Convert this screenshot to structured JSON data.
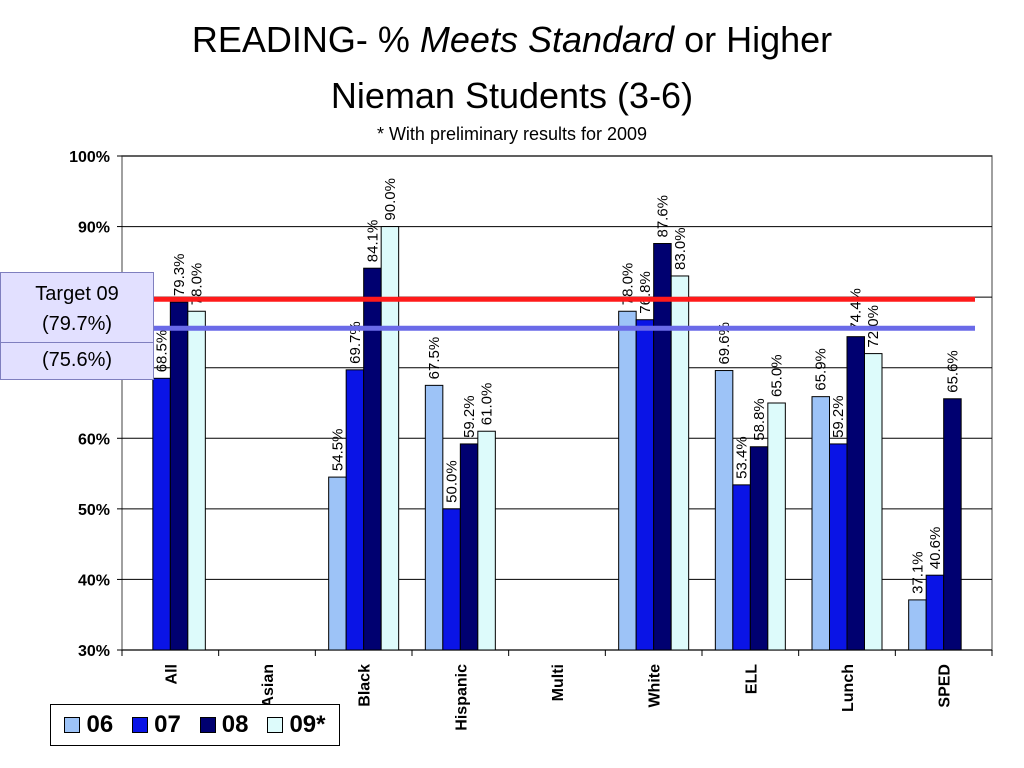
{
  "title_prefix": "READING- % ",
  "title_italic": "Meets Standard",
  "title_suffix": " or Higher",
  "title_line2": "Nieman Students (3-6)",
  "subtitle": "* With preliminary results for 2009",
  "target_box_1": [
    "Target 09",
    "(79.7%)"
  ],
  "target_box_2": "(75.6%)",
  "colors": {
    "s06": "#9dc3f7",
    "s07": "#0a14e6",
    "s08": "#000070",
    "s09": "#ddfbfb",
    "target_red": "#ff1a1a",
    "target_blue": "#6a6ae8"
  },
  "chart_data": {
    "type": "bar",
    "title": "READING- % Meets Standard or Higher",
    "subtitle": "Nieman Students (3-6)",
    "categories": [
      "All",
      "Asian",
      "Black",
      "Hispanic",
      "Multi",
      "White",
      "ELL",
      "Lunch",
      "SPED"
    ],
    "ylim": [
      30,
      100
    ],
    "yticks": [
      "30%",
      "40%",
      "50%",
      "60%",
      "70%",
      "80%",
      "90%",
      "100%"
    ],
    "grid": true,
    "legend_position": "bottom-left",
    "series": [
      {
        "name": "06",
        "values": [
          null,
          null,
          54.5,
          67.5,
          null,
          78.0,
          69.6,
          65.9,
          37.1
        ],
        "labels": [
          "",
          "",
          "54.5%",
          "67.5%",
          "",
          "78.0%",
          "69.6%",
          "65.9%",
          "37.1%"
        ]
      },
      {
        "name": "07",
        "values": [
          68.5,
          null,
          69.7,
          50.0,
          null,
          76.8,
          53.4,
          59.2,
          40.6
        ],
        "labels": [
          "68.5%",
          "",
          "69.7%",
          "50.0%",
          "",
          "76.8%",
          "53.4%",
          "59.2%",
          "40.6%"
        ]
      },
      {
        "name": "08",
        "values": [
          79.3,
          null,
          84.1,
          59.2,
          null,
          87.6,
          58.8,
          74.4,
          65.6
        ],
        "labels": [
          "79.3%",
          "",
          "84.1%",
          "59.2%",
          "",
          "87.6%",
          "58.8%",
          "74.4%",
          "65.6%"
        ]
      },
      {
        "name": "09*",
        "values": [
          78.0,
          null,
          90.0,
          61.0,
          null,
          83.0,
          65.0,
          72.0,
          null
        ],
        "labels": [
          "78.0%",
          "",
          "90.0%",
          "61.0%",
          "",
          "83.0%",
          "65.0%",
          "72.0%",
          ""
        ]
      }
    ],
    "reference_lines": [
      {
        "value": 79.7,
        "color": "#ff1a1a"
      },
      {
        "value": 75.6,
        "color": "#6a6ae8"
      }
    ]
  }
}
